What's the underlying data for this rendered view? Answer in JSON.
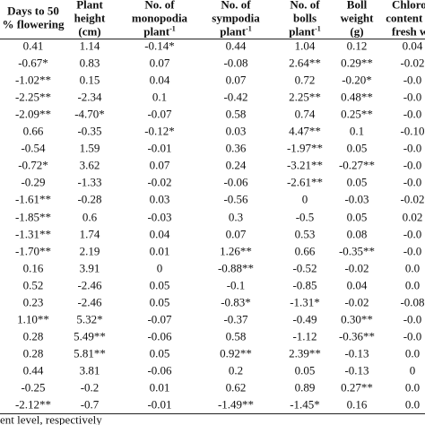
{
  "table": {
    "header": [
      [
        "Days to 50",
        "% flowering"
      ],
      [
        "Plant",
        "height",
        "(cm)"
      ],
      [
        "No. of",
        "monopodia",
        {
          "text": "plant",
          "sup": "-1"
        }
      ],
      [
        "No. of",
        "sympodia",
        {
          "text": "plant",
          "sup": "-1"
        }
      ],
      [
        "No. of",
        "bolls",
        {
          "text": "plant",
          "sup": "-1"
        }
      ],
      [
        "Boll",
        "weight",
        "(g)"
      ],
      [
        "Chlorop",
        "content (m",
        "fresh we"
      ]
    ],
    "rows": [
      [
        "0.41",
        "1.14",
        "-0.14*",
        "0.44",
        "1.04",
        "0.12",
        "0.04"
      ],
      [
        "-0.67*",
        "0.83",
        "0.07",
        "-0.08",
        "2.64**",
        "0.29**",
        "-0.02"
      ],
      [
        "-1.02**",
        "0.15",
        "0.04",
        "0.07",
        "0.72",
        "-0.20*",
        "-0.0"
      ],
      [
        "-2.25**",
        "-2.34",
        "0.1",
        "-0.42",
        "2.25**",
        "0.48**",
        "-0.0"
      ],
      [
        "-2.09**",
        "-4.70*",
        "-0.07",
        "0.58",
        "0.74",
        "0.25**",
        "-0.0"
      ],
      [
        "0.66",
        "-0.35",
        "-0.12*",
        "0.03",
        "4.47**",
        "0.1",
        "-0.10"
      ],
      [
        "-0.54",
        "1.59",
        "-0.01",
        "0.36",
        "-1.97**",
        "0.05",
        "-0.0"
      ],
      [
        "-0.72*",
        "3.62",
        "0.07",
        "0.24",
        "-3.21**",
        "-0.27**",
        "-0.0"
      ],
      [
        "-0.29",
        "-1.33",
        "-0.02",
        "-0.06",
        "-2.61**",
        "0.05",
        "-0.0"
      ],
      [
        "-1.61**",
        "-0.28",
        "0.03",
        "-0.56",
        "0",
        "-0.03",
        "-0.02"
      ],
      [
        "-1.85**",
        "0.6",
        "-0.03",
        "0.3",
        "-0.5",
        "0.05",
        "0.02"
      ],
      [
        "-1.31**",
        "1.74",
        "0.04",
        "0.07",
        "0.53",
        "0.08",
        "-0.0"
      ],
      [
        "-1.70**",
        "2.19",
        "0.01",
        "1.26**",
        "0.66",
        "-0.35**",
        "-0.0"
      ],
      [
        "0.16",
        "3.91",
        "0",
        "-0.88**",
        "-0.52",
        "-0.02",
        "0.0"
      ],
      [
        "0.52",
        "-2.46",
        "0.05",
        "-0.1",
        "-0.85",
        "0.04",
        "0.0"
      ],
      [
        "0.23",
        "-2.46",
        "0.05",
        "-0.83*",
        "-1.31*",
        "-0.02",
        "-0.08"
      ],
      [
        "1.10**",
        "5.32*",
        "-0.07",
        "-0.37",
        "-0.49",
        "0.30**",
        "-0.0"
      ],
      [
        "0.28",
        "5.49**",
        "-0.06",
        "0.58",
        "-1.12",
        "-0.36**",
        "-0.0"
      ],
      [
        "0.28",
        "5.81**",
        "0.05",
        "0.92**",
        "2.39**",
        "-0.13",
        "0.0"
      ],
      [
        "0.44",
        "3.81",
        "-0.06",
        "0.2",
        "0.05",
        "-0.13",
        "0"
      ],
      [
        "-0.25",
        "-0.2",
        "0.01",
        "0.62",
        "0.89",
        "0.27**",
        "0.0"
      ],
      [
        "-2.12**",
        "-0.7",
        "-0.01",
        "-1.49**",
        "-1.45*",
        "0.16",
        "0.0"
      ]
    ],
    "footnote": "ent level, respectively"
  }
}
